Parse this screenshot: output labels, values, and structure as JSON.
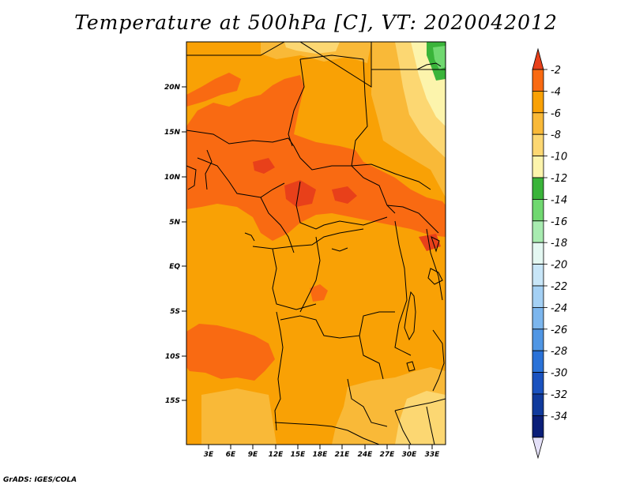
{
  "title": "Temperature at 500hPa [C], VT: 2020042012",
  "credit": "GrADS: IGES/COLA",
  "map": {
    "lat_ticks": [
      "20N",
      "15N",
      "10N",
      "5N",
      "EQ",
      "5S",
      "10S",
      "15S"
    ],
    "lon_ticks": [
      "3E",
      "6E",
      "9E",
      "12E",
      "15E",
      "18E",
      "21E",
      "24E",
      "27E",
      "30E",
      "33E"
    ]
  },
  "colorbar": {
    "labels": [
      "-2",
      "-4",
      "-6",
      "-8",
      "-10",
      "-12",
      "-14",
      "-16",
      "-18",
      "-20",
      "-22",
      "-24",
      "-26",
      "-28",
      "-30",
      "-32",
      "-34"
    ],
    "colors": [
      "#e8401a",
      "#f96a12",
      "#f9a105",
      "#f9b938",
      "#fcd772",
      "#fcf4ac",
      "#3ab43a",
      "#70d870",
      "#a8ebb0",
      "#e4f8f2",
      "#c8e6f8",
      "#a4d0f4",
      "#7cb6ee",
      "#5096e4",
      "#2a72d8",
      "#1a52bf",
      "#103a9c",
      "#0a1e78",
      "#e4e0f8"
    ]
  }
}
